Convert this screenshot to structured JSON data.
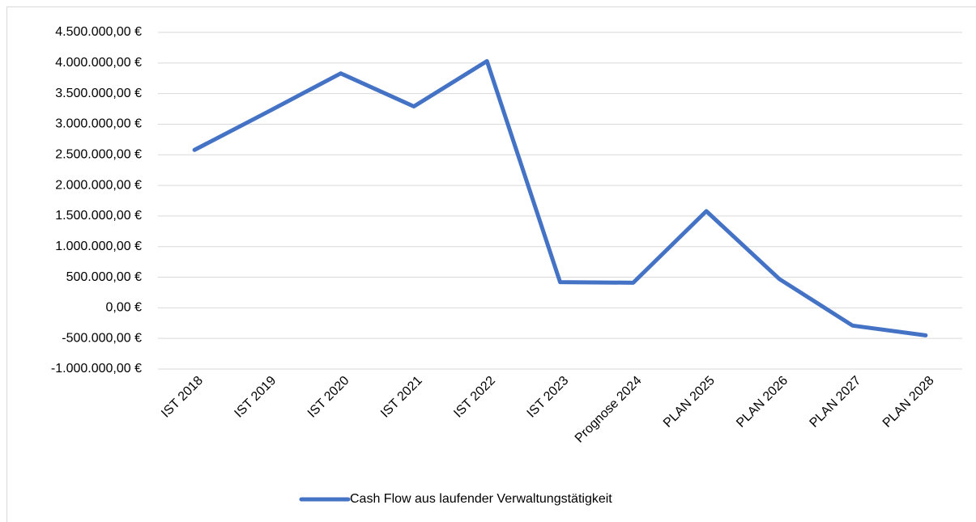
{
  "chart_data": {
    "type": "line",
    "categories": [
      "IST 2018",
      "IST 2019",
      "IST 2020",
      "IST 2021",
      "IST 2022",
      "IST 2023",
      "Prognose 2024",
      "PLAN 2025",
      "PLAN 2026",
      "PLAN 2027",
      "PLAN 2028"
    ],
    "series": [
      {
        "name": "Cash Flow aus laufender Verwaltungstätigkeit",
        "color": "#4472c4",
        "values": [
          2580000,
          3200000,
          3830000,
          3290000,
          4030000,
          420000,
          410000,
          1580000,
          470000,
          -290000,
          -450000
        ]
      }
    ],
    "ylim": [
      -1000000,
      4500000
    ],
    "yticks": [
      {
        "value": -1000000,
        "label": "-1.000.000,00 €"
      },
      {
        "value": -500000,
        "label": "-500.000,00 €"
      },
      {
        "value": 0,
        "label": "0,00 €"
      },
      {
        "value": 500000,
        "label": "500.000,00 €"
      },
      {
        "value": 1000000,
        "label": "1.000.000,00 €"
      },
      {
        "value": 1500000,
        "label": "1.500.000,00 €"
      },
      {
        "value": 2000000,
        "label": "2.000.000,00 €"
      },
      {
        "value": 2500000,
        "label": "2.500.000,00 €"
      },
      {
        "value": 3000000,
        "label": "3.000.000,00 €"
      },
      {
        "value": 3500000,
        "label": "3.500.000,00 €"
      },
      {
        "value": 4000000,
        "label": "4.000.000,00 €"
      },
      {
        "value": 4500000,
        "label": "4.500.000,00 €"
      }
    ],
    "grid": true,
    "legend": "bottom"
  }
}
